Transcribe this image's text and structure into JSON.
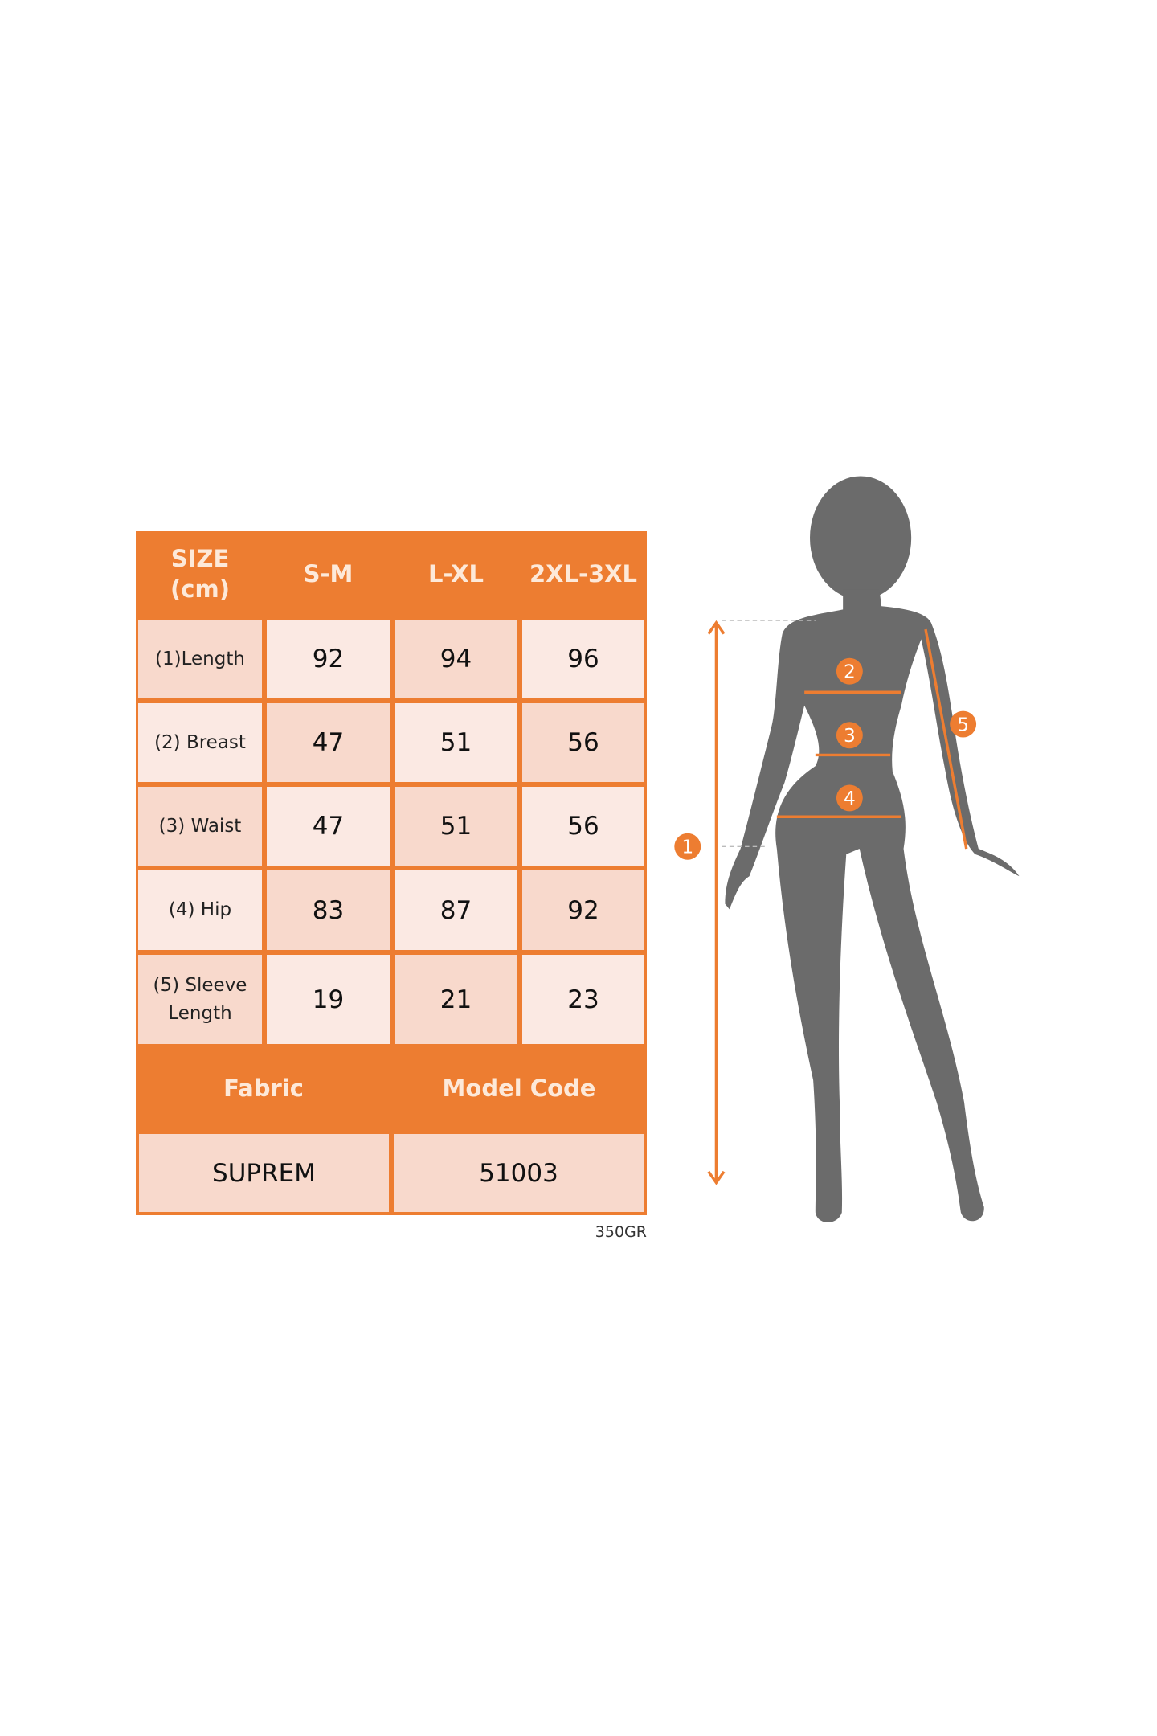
{
  "table": {
    "header": [
      "SIZE\n(cm)",
      "S-M",
      "L-XL",
      "2XL-3XL"
    ],
    "rows": [
      {
        "label": "(1)Length",
        "values": [
          "92",
          "94",
          "96"
        ]
      },
      {
        "label": "(2) Breast",
        "values": [
          "47",
          "51",
          "56"
        ]
      },
      {
        "label": "(3) Waist",
        "values": [
          "47",
          "51",
          "56"
        ]
      },
      {
        "label": "(4) Hip",
        "values": [
          "83",
          "87",
          "92"
        ]
      },
      {
        "label": "(5) Sleeve Length",
        "values": [
          "19",
          "21",
          "23"
        ]
      }
    ],
    "info_headers": [
      "Fabric",
      "Model Code"
    ],
    "info_values": [
      "SUPREM",
      "51003"
    ],
    "note": "350GR"
  },
  "figure": {
    "markers": [
      "1",
      "2",
      "3",
      "4",
      "5"
    ],
    "accent_color": "#ed7d31",
    "silhouette_color": "#6b6b6b"
  }
}
